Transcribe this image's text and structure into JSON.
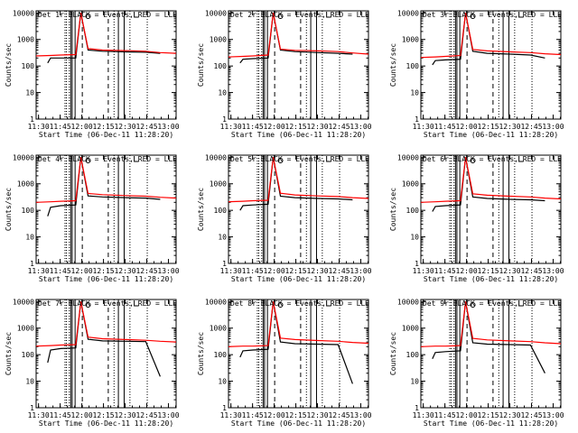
{
  "colors": {
    "events": "#000000",
    "lld": "#ff0000",
    "frame": "#000000",
    "background": "#ffffff"
  },
  "y_axis_label": "Counts/sec",
  "x_axis_label": "Start Time (06-Dec-11 11:28:20)",
  "x_tick_labels": [
    "11:30",
    "11:45",
    "12:00",
    "12:15",
    "12:30",
    "12:45",
    "13:00"
  ],
  "y_tick_labels": [
    "1",
    "10",
    "100",
    "1000",
    "10000"
  ],
  "chart_data": [
    {
      "type": "line",
      "title": "Det 1r BLACK = Events, RED = LLD",
      "xlabel": "Start Time (06-Dec-11 11:28:20)",
      "ylabel": "Counts/sec",
      "xlim_minutes": [
        0,
        97
      ],
      "ylim": [
        1,
        12000
      ],
      "yscale": "log",
      "x_ticks_minutes": [
        1.67,
        16.67,
        31.67,
        46.67,
        61.67,
        76.67,
        91.67
      ],
      "series": [
        {
          "name": "Events",
          "x": [
            8,
            10,
            17,
            27.5,
            31,
            36,
            46,
            62,
            76,
            86
          ],
          "y": [
            130,
            200,
            200,
            200,
            10000,
            400,
            360,
            340,
            330,
            300
          ]
        },
        {
          "name": "LLD",
          "x": [
            0,
            10,
            17,
            27.5,
            31,
            36,
            46,
            62,
            76,
            86,
            97
          ],
          "y": [
            240,
            250,
            260,
            270,
            10000,
            450,
            400,
            380,
            360,
            320,
            300
          ]
        }
      ],
      "vertical_lines_minutes": {
        "dotted": [
          20,
          21,
          23,
          54,
          65,
          77
        ],
        "solid": [
          24,
          25,
          27,
          57,
          61
        ],
        "dashed": [
          32,
          50
        ]
      }
    },
    {
      "type": "line",
      "title": "Det 2r BLACK = Events, RED = LLD",
      "xlabel": "Start Time (06-Dec-11 11:28:20)",
      "ylabel": "Counts/sec",
      "xlim_minutes": [
        0,
        97
      ],
      "ylim": [
        1,
        12000
      ],
      "yscale": "log",
      "x_ticks_minutes": [
        1.67,
        16.67,
        31.67,
        46.67,
        61.67,
        76.67,
        91.67
      ],
      "series": [
        {
          "name": "Events",
          "x": [
            8,
            10,
            17,
            27.5,
            31,
            36,
            46,
            62,
            76,
            86
          ],
          "y": [
            130,
            180,
            190,
            200,
            10000,
            400,
            350,
            320,
            300,
            280
          ]
        },
        {
          "name": "LLD",
          "x": [
            0,
            10,
            17,
            27.5,
            31,
            36,
            46,
            62,
            76,
            86,
            97
          ],
          "y": [
            220,
            230,
            240,
            260,
            10000,
            430,
            390,
            370,
            350,
            310,
            280
          ]
        }
      ],
      "vertical_lines_minutes": {
        "dotted": [
          20,
          21,
          23,
          54,
          65,
          77
        ],
        "solid": [
          24,
          25,
          27,
          57,
          61
        ],
        "dashed": [
          32,
          50
        ]
      }
    },
    {
      "type": "line",
      "title": "Det 3r BLACK = Events, RED = LLD",
      "xlabel": "Start Time (06-Dec-11 11:28:20)",
      "ylabel": "Counts/sec",
      "xlim_minutes": [
        0,
        97
      ],
      "ylim": [
        1,
        12000
      ],
      "yscale": "log",
      "x_ticks_minutes": [
        1.67,
        16.67,
        31.67,
        46.67,
        61.67,
        76.67,
        91.67
      ],
      "series": [
        {
          "name": "Events",
          "x": [
            8,
            10,
            17,
            27.5,
            31,
            36,
            46,
            62,
            76,
            86
          ],
          "y": [
            110,
            160,
            170,
            180,
            10000,
            360,
            300,
            280,
            260,
            200
          ]
        },
        {
          "name": "LLD",
          "x": [
            0,
            10,
            17,
            27.5,
            31,
            36,
            46,
            62,
            76,
            86,
            97
          ],
          "y": [
            210,
            220,
            230,
            250,
            10000,
            420,
            370,
            340,
            320,
            290,
            270
          ]
        }
      ],
      "vertical_lines_minutes": {
        "dotted": [
          20,
          21,
          23,
          54,
          65,
          77
        ],
        "solid": [
          24,
          25,
          27,
          57,
          61
        ],
        "dashed": [
          32,
          50
        ]
      }
    },
    {
      "type": "line",
      "title": "Det 4r BLACK = Events, RED = LLD",
      "xlabel": "Start Time (06-Dec-11 11:28:20)",
      "ylabel": "Counts/sec",
      "xlim_minutes": [
        0,
        97
      ],
      "ylim": [
        1,
        12000
      ],
      "yscale": "log",
      "x_ticks_minutes": [
        1.67,
        16.67,
        31.67,
        46.67,
        61.67,
        76.67,
        91.67
      ],
      "series": [
        {
          "name": "Events",
          "x": [
            8,
            10,
            17,
            27.5,
            31,
            36,
            46,
            62,
            76,
            86
          ],
          "y": [
            60,
            130,
            150,
            160,
            10000,
            350,
            320,
            300,
            290,
            260
          ]
        },
        {
          "name": "LLD",
          "x": [
            0,
            10,
            17,
            27.5,
            31,
            36,
            46,
            62,
            76,
            86,
            97
          ],
          "y": [
            200,
            210,
            220,
            230,
            10000,
            430,
            390,
            360,
            340,
            310,
            290
          ]
        }
      ],
      "vertical_lines_minutes": {
        "dotted": [
          20,
          21,
          23,
          54,
          65,
          77
        ],
        "solid": [
          24,
          25,
          27,
          57,
          61
        ],
        "dashed": [
          32,
          50
        ]
      }
    },
    {
      "type": "line",
      "title": "Det 5r BLACK = Events, RED = LLD",
      "xlabel": "Start Time (06-Dec-11 11:28:20)",
      "ylabel": "Counts/sec",
      "xlim_minutes": [
        0,
        97
      ],
      "ylim": [
        1,
        12000
      ],
      "yscale": "log",
      "x_ticks_minutes": [
        1.67,
        16.67,
        31.67,
        46.67,
        61.67,
        76.67,
        91.67
      ],
      "series": [
        {
          "name": "Events",
          "x": [
            8,
            10,
            17,
            27.5,
            31,
            36,
            46,
            62,
            76,
            86
          ],
          "y": [
            100,
            150,
            160,
            170,
            10000,
            340,
            300,
            280,
            270,
            250
          ]
        },
        {
          "name": "LLD",
          "x": [
            0,
            10,
            17,
            27.5,
            31,
            36,
            46,
            62,
            76,
            86,
            97
          ],
          "y": [
            210,
            220,
            230,
            240,
            10000,
            440,
            380,
            350,
            330,
            300,
            280
          ]
        }
      ],
      "vertical_lines_minutes": {
        "dotted": [
          20,
          21,
          23,
          54,
          65,
          77
        ],
        "solid": [
          24,
          25,
          27,
          57,
          61
        ],
        "dashed": [
          32,
          50
        ]
      }
    },
    {
      "type": "line",
      "title": "Det 6r BLACK = Events, RED = LLD",
      "xlabel": "Start Time (06-Dec-11 11:28:20)",
      "ylabel": "Counts/sec",
      "xlim_minutes": [
        0,
        97
      ],
      "ylim": [
        1,
        12000
      ],
      "yscale": "log",
      "x_ticks_minutes": [
        1.67,
        16.67,
        31.67,
        46.67,
        61.67,
        76.67,
        91.67
      ],
      "series": [
        {
          "name": "Events",
          "x": [
            8,
            10,
            17,
            27.5,
            31,
            36,
            46,
            62,
            76,
            86
          ],
          "y": [
            90,
            140,
            150,
            160,
            10000,
            320,
            280,
            260,
            250,
            230
          ]
        },
        {
          "name": "LLD",
          "x": [
            0,
            10,
            17,
            27.5,
            31,
            36,
            46,
            62,
            76,
            86,
            97
          ],
          "y": [
            200,
            210,
            220,
            230,
            10000,
            420,
            370,
            340,
            320,
            290,
            270
          ]
        }
      ],
      "vertical_lines_minutes": {
        "dotted": [
          20,
          21,
          23,
          54,
          65,
          77
        ],
        "solid": [
          24,
          25,
          27,
          57,
          61
        ],
        "dashed": [
          32,
          50
        ]
      }
    },
    {
      "type": "line",
      "title": "Det 7r BLACK = Events, RED = LLD",
      "xlabel": "Start Time (06-Dec-11 11:28:20)",
      "ylabel": "Counts/sec",
      "xlim_minutes": [
        0,
        97
      ],
      "ylim": [
        1,
        12000
      ],
      "yscale": "log",
      "x_ticks_minutes": [
        1.67,
        16.67,
        31.67,
        46.67,
        61.67,
        76.67,
        91.67
      ],
      "series": [
        {
          "name": "Events",
          "x": [
            8,
            10,
            17,
            27.5,
            31,
            36,
            46,
            62,
            76,
            86
          ],
          "y": [
            50,
            150,
            170,
            180,
            10000,
            380,
            330,
            320,
            310,
            15
          ]
        },
        {
          "name": "LLD",
          "x": [
            0,
            10,
            17,
            27.5,
            31,
            36,
            46,
            62,
            76,
            86,
            97
          ],
          "y": [
            210,
            220,
            230,
            240,
            10000,
            460,
            400,
            370,
            350,
            320,
            300
          ]
        }
      ],
      "vertical_lines_minutes": {
        "dotted": [
          20,
          21,
          23,
          54,
          65,
          77
        ],
        "solid": [
          24,
          25,
          27,
          57,
          61
        ],
        "dashed": [
          32,
          50
        ]
      }
    },
    {
      "type": "line",
      "title": "Det 8r BLACK = Events, RED = LLD",
      "xlabel": "Start Time (06-Dec-11 11:28:20)",
      "ylabel": "Counts/sec",
      "xlim_minutes": [
        0,
        97
      ],
      "ylim": [
        1,
        12000
      ],
      "yscale": "log",
      "x_ticks_minutes": [
        1.67,
        16.67,
        31.67,
        46.67,
        61.67,
        76.67,
        91.67
      ],
      "series": [
        {
          "name": "Events",
          "x": [
            8,
            10,
            17,
            27.5,
            31,
            36,
            46,
            62,
            76,
            86
          ],
          "y": [
            80,
            140,
            150,
            160,
            10000,
            300,
            260,
            250,
            240,
            8
          ]
        },
        {
          "name": "LLD",
          "x": [
            0,
            10,
            17,
            27.5,
            31,
            36,
            46,
            62,
            76,
            86,
            97
          ],
          "y": [
            200,
            210,
            210,
            220,
            10000,
            420,
            370,
            340,
            320,
            290,
            270
          ]
        }
      ],
      "vertical_lines_minutes": {
        "dotted": [
          20,
          21,
          23,
          54,
          65,
          77
        ],
        "solid": [
          24,
          25,
          27,
          57,
          61
        ],
        "dashed": [
          32,
          50
        ]
      }
    },
    {
      "type": "line",
      "title": "Det 9r BLACK = Events, RED = LLD",
      "xlabel": "Start Time (06-Dec-11 11:28:20)",
      "ylabel": "Counts/sec",
      "xlim_minutes": [
        0,
        97
      ],
      "ylim": [
        1,
        12000
      ],
      "yscale": "log",
      "x_ticks_minutes": [
        1.67,
        16.67,
        31.67,
        46.67,
        61.67,
        76.67,
        91.67
      ],
      "series": [
        {
          "name": "Events",
          "x": [
            8,
            10,
            17,
            27.5,
            31,
            36,
            46,
            62,
            76,
            86
          ],
          "y": [
            70,
            120,
            130,
            140,
            10000,
            280,
            250,
            240,
            230,
            20
          ]
        },
        {
          "name": "LLD",
          "x": [
            0,
            10,
            17,
            27.5,
            31,
            36,
            46,
            62,
            76,
            86,
            97
          ],
          "y": [
            200,
            210,
            210,
            220,
            10000,
            410,
            360,
            330,
            310,
            280,
            260
          ]
        }
      ],
      "vertical_lines_minutes": {
        "dotted": [
          20,
          21,
          23,
          54,
          65,
          77
        ],
        "solid": [
          24,
          25,
          27,
          57,
          61
        ],
        "dashed": [
          32,
          50
        ]
      }
    }
  ]
}
